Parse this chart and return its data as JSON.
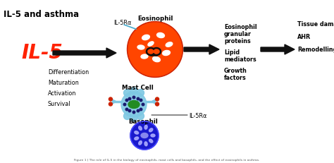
{
  "title": "IL-5 and asthma",
  "bg_color": "#ffffff",
  "il5_color": "#ff2200",
  "arrow_color": "#111111",
  "eosinophil_color": "#ff4500",
  "eosinophil_outline": "#cc2200",
  "mastcell_body_color": "#7ec8e3",
  "mastcell_nucleus_color": "#228b22",
  "basophil_color": "#1a1acd",
  "basophil_outline": "#00008b",
  "granule_color": "#ffffff",
  "text_color": "#000000",
  "label_fontsize": 5.8,
  "bold_label_fontsize": 6.2,
  "title_fontsize": 8.5,
  "il5_fontsize": 20,
  "caption_fontsize": 3.2,
  "il5_label": "IL-5",
  "eos_label": "Eosinophil",
  "il5ra_label": "IL-5Rα",
  "mc_label": "Mast Cell",
  "bas_label": "Basophil",
  "diff_labels": [
    "Differentiation",
    "Maturation",
    "Activation",
    "Survival"
  ],
  "effect_lines": [
    "Eosinophil",
    "granular",
    "proteins",
    "",
    "Lipid",
    "mediators",
    "",
    "Growth",
    "factors"
  ],
  "outcome_labels": [
    "Tissue damage",
    "AHR",
    "Remodelling"
  ],
  "caption": "Figure 1 | The role of IL-5 in the biology of eosinophils, mast cells and basophils, and the effect of eosinophils in asthma."
}
